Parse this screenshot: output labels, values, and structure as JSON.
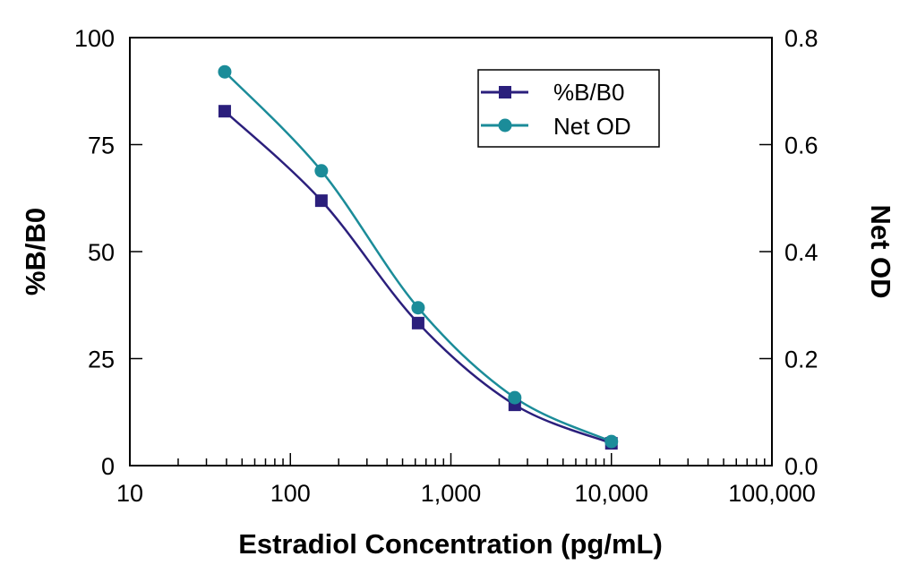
{
  "chart_data": {
    "type": "line",
    "xlabel": "Estradiol Concentration (pg/mL)",
    "ylabel": "%B/B0",
    "y2label": "Net OD",
    "x_scale": "log",
    "xlim": [
      10,
      100000
    ],
    "ylim": [
      0,
      100
    ],
    "y2lim": [
      0,
      0.8
    ],
    "x_ticks": [
      "10",
      "100",
      "1,000",
      "10,000",
      "100,000"
    ],
    "y_ticks": [
      "0",
      "25",
      "50",
      "75",
      "100"
    ],
    "y2_ticks": [
      "0.0",
      "0.2",
      "0.4",
      "0.6",
      "0.8"
    ],
    "grid": false,
    "legend_position": "top-right",
    "series": [
      {
        "name": "%B/B0",
        "axis": "left",
        "marker": "square",
        "color": "#2b1f7c",
        "x": [
          39,
          156,
          625,
          2500,
          10000
        ],
        "y": [
          82.8,
          61.9,
          33.3,
          14.2,
          5.2
        ]
      },
      {
        "name": "Net OD",
        "axis": "right",
        "marker": "circle",
        "color": "#1b8c99",
        "x": [
          39,
          156,
          625,
          2500,
          10000
        ],
        "y": [
          0.736,
          0.551,
          0.295,
          0.127,
          0.045
        ]
      }
    ]
  }
}
